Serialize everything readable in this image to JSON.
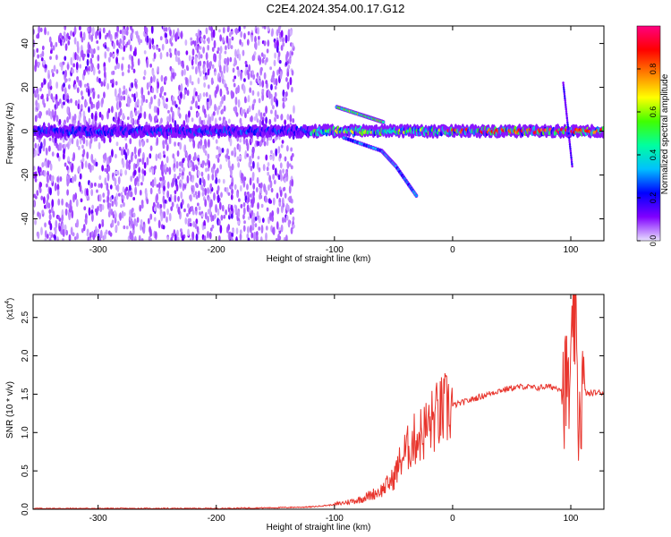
{
  "title": "C2E4.2024.354.00.17.G12",
  "chart_data": [
    {
      "type": "heatmap",
      "xlabel": "Height of straight line (km)",
      "ylabel": "Frequency (Hz)",
      "xlim": [
        -355,
        128
      ],
      "ylim": [
        -50,
        48
      ],
      "xticks": [
        -300,
        -200,
        -100,
        0,
        100
      ],
      "yticks": [
        -40,
        -20,
        0,
        20,
        40
      ],
      "colorbar": {
        "label": "Normalized spectral amplitude",
        "range": [
          0,
          1
        ],
        "ticks": [
          "0.0",
          "0.2",
          "0.4",
          "0.6",
          "0.8"
        ],
        "colors": [
          "#e8e0ff",
          "#8000ff",
          "#0000ff",
          "#00c0ff",
          "#00ffa0",
          "#40ff00",
          "#ffff00",
          "#ff8000",
          "#ff0000",
          "#ff0080"
        ]
      },
      "features": {
        "noise_region_x": [
          -355,
          -135
        ],
        "main_band_freq": 0,
        "upper_branch": [
          [
            -98,
            11
          ],
          [
            -75,
            7
          ],
          [
            -58,
            4
          ]
        ],
        "lower_branch": [
          [
            -92,
            -3
          ],
          [
            -60,
            -9
          ],
          [
            -48,
            -16
          ],
          [
            -30,
            -30
          ]
        ],
        "spike_x": 98,
        "spike_freq_range": [
          -16,
          22
        ]
      }
    },
    {
      "type": "line",
      "xlabel": "Height of straight line (km)",
      "ylabel": "SNR (10 * v/v)",
      "y_multiplier": "(x10",
      "y_exponent": "4",
      "xlim": [
        -355,
        128
      ],
      "ylim": [
        0,
        2.8
      ],
      "xticks": [
        -300,
        -200,
        -100,
        0,
        100
      ],
      "yticks": [
        "0.0",
        "0.5",
        "1.0",
        "1.5",
        "2.0",
        "2.5"
      ],
      "series": [
        {
          "color": "#e8342c",
          "x": [
            -355,
            -300,
            -250,
            -200,
            -150,
            -120,
            -100,
            -90,
            -80,
            -70,
            -60,
            -50,
            -45,
            -40,
            -35,
            -30,
            -25,
            -20,
            -15,
            -10,
            -5,
            0,
            10,
            20,
            30,
            40,
            50,
            60,
            70,
            80,
            90,
            95,
            100,
            103,
            106,
            110,
            115,
            120,
            128
          ],
          "y": [
            0.01,
            0.01,
            0.01,
            0.01,
            0.02,
            0.03,
            0.06,
            0.09,
            0.12,
            0.18,
            0.25,
            0.4,
            0.6,
            0.75,
            0.85,
            0.95,
            1.0,
            1.1,
            1.18,
            1.25,
            1.3,
            1.35,
            1.4,
            1.45,
            1.5,
            1.55,
            1.58,
            1.6,
            1.58,
            1.6,
            1.58,
            1.58,
            1.55,
            2.7,
            1.2,
            1.55,
            1.5,
            1.52,
            1.52
          ]
        }
      ]
    }
  ]
}
